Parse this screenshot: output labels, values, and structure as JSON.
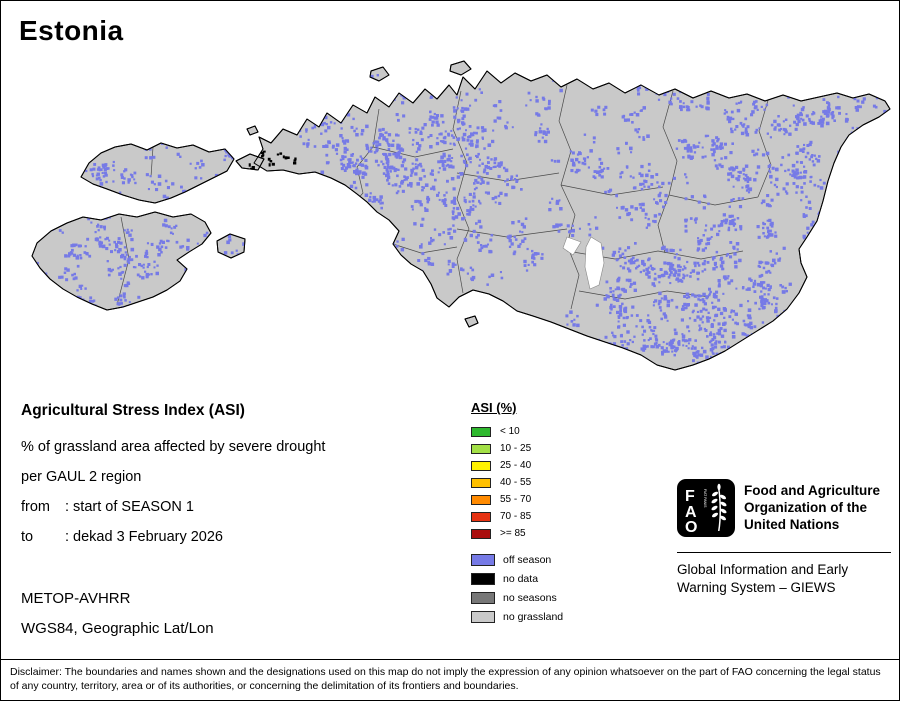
{
  "page": {
    "title": "Estonia"
  },
  "map": {
    "land_color": "#c9c9c9",
    "border_color": "#000000",
    "lake_color": "#ffffff"
  },
  "info": {
    "heading": "Agricultural Stress Index (ASI)",
    "line1": "% of grassland area affected by severe drought",
    "line2": "per GAUL 2 region",
    "from_label": "from",
    "from_value": ": start of SEASON 1",
    "to_label": "to",
    "to_value": ": dekad 3 February 2026",
    "sensor": "METOP-AVHRR",
    "projection": "WGS84, Geographic Lat/Lon"
  },
  "asi_legend": {
    "title": "ASI (%)",
    "items": [
      {
        "label": "< 10",
        "color": "#2eb82e"
      },
      {
        "label": "10 - 25",
        "color": "#a3e046"
      },
      {
        "label": "25 - 40",
        "color": "#fff200"
      },
      {
        "label": "40 - 55",
        "color": "#ffc000"
      },
      {
        "label": "55 - 70",
        "color": "#ff8a00"
      },
      {
        "label": "70 - 85",
        "color": "#e63212"
      },
      {
        "label": ">= 85",
        "color": "#aa0e0e"
      }
    ]
  },
  "status_legend": {
    "items": [
      {
        "label": "off season",
        "color": "#767ae6"
      },
      {
        "label": "no data",
        "color": "#000000"
      },
      {
        "label": "no seasons",
        "color": "#777777"
      },
      {
        "label": "no grassland",
        "color": "#c9c9c9"
      }
    ]
  },
  "fao": {
    "logo_letters": [
      "F",
      "A",
      "O"
    ],
    "motto": "FIAT PANIS",
    "org_line1": "Food and Agriculture",
    "org_line2": "Organization of the",
    "org_line3": "United Nations",
    "giews_line1": "Global Information and Early",
    "giews_line2": "Warning System – GIEWS"
  },
  "disclaimer": "Disclaimer: The boundaries and names shown and the designations used on this map do not imply the expression of any opinion whatsoever on the part of FAO concerning the legal status of any country, territory, area or of its authorities, or concerning the delimitation of its frontiers and boundaries."
}
